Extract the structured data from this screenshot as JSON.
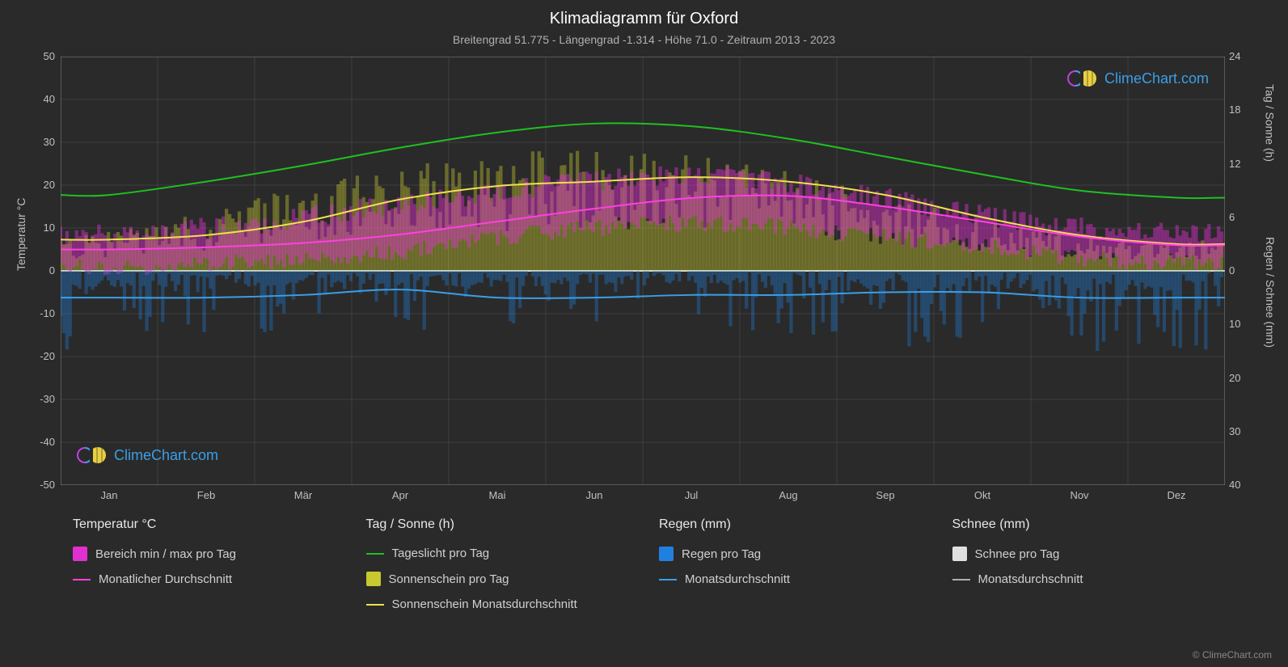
{
  "title": "Klimadiagramm für Oxford",
  "subtitle": "Breitengrad 51.775 - Längengrad -1.314 - Höhe 71.0 - Zeitraum 2013 - 2023",
  "background_color": "#2a2a2a",
  "grid_color": "#555555",
  "zero_line_color": "#e0e0e0",
  "text_color": "#e0e0e0",
  "axis_left": {
    "label": "Temperatur °C",
    "min": -50,
    "max": 50,
    "step": 10,
    "ticks": [
      50,
      40,
      30,
      20,
      10,
      0,
      -10,
      -20,
      -30,
      -40,
      -50
    ]
  },
  "axis_right_top": {
    "label": "Tag / Sonne (h)",
    "min": 0,
    "max": 24,
    "step": 6,
    "ticks": [
      24,
      18,
      12,
      6,
      0
    ]
  },
  "axis_right_bottom": {
    "label": "Regen / Schnee (mm)",
    "min": 0,
    "max": 40,
    "step": 10,
    "ticks": [
      10,
      20,
      30,
      40
    ]
  },
  "months": [
    "Jan",
    "Feb",
    "Mär",
    "Apr",
    "Mai",
    "Jun",
    "Jul",
    "Aug",
    "Sep",
    "Okt",
    "Nov",
    "Dez"
  ],
  "series": {
    "temp_range": {
      "color": "#e030d0",
      "opacity": 0.45,
      "min": [
        1,
        1,
        2,
        3,
        6,
        9,
        11,
        11,
        9,
        7,
        4,
        2
      ],
      "max": [
        8,
        9,
        11,
        14,
        17,
        20,
        22,
        22,
        19,
        15,
        11,
        9
      ]
    },
    "temp_avg": {
      "color": "#ff40e0",
      "line_width": 2,
      "values": [
        5,
        5.5,
        6.5,
        8.5,
        11.5,
        14.5,
        17,
        17.5,
        15,
        11.5,
        8,
        6
      ]
    },
    "daylight": {
      "color": "#20c020",
      "line_width": 2,
      "values_h": [
        8.5,
        10,
        11.8,
        13.8,
        15.5,
        16.5,
        16.2,
        14.8,
        12.8,
        10.8,
        9,
        8.2
      ]
    },
    "sunshine_bars": {
      "color": "#c8c830",
      "opacity": 0.4,
      "values_h": [
        2,
        3,
        4.5,
        6,
        7,
        7.5,
        7.5,
        7,
        5.5,
        4,
        2.5,
        2
      ]
    },
    "sunshine_avg": {
      "color": "#f0e050",
      "line_width": 2,
      "values_h": [
        3.5,
        4,
        5.5,
        8,
        9.5,
        10,
        10.5,
        10,
        8.5,
        6,
        4,
        3
      ]
    },
    "rain_bars": {
      "color": "#2080e0",
      "opacity": 0.35,
      "values_mm": [
        5,
        4,
        4,
        3,
        4,
        4,
        3,
        4,
        4,
        5,
        5,
        5
      ]
    },
    "rain_avg": {
      "color": "#3a9fe8",
      "line_width": 2,
      "values_mm": [
        5,
        5,
        4.5,
        3.5,
        5,
        5,
        4.5,
        4.5,
        4,
        4,
        5,
        5
      ]
    },
    "snow_bars": {
      "color": "#e0e0e0",
      "opacity": 0.3
    },
    "snow_avg": {
      "color": "#b0b0b0",
      "line_width": 2
    }
  },
  "legend": {
    "col1": {
      "header": "Temperatur °C",
      "items": [
        {
          "type": "box",
          "color": "#e030d0",
          "label": "Bereich min / max pro Tag"
        },
        {
          "type": "line",
          "color": "#ff40e0",
          "label": "Monatlicher Durchschnitt"
        }
      ]
    },
    "col2": {
      "header": "Tag / Sonne (h)",
      "items": [
        {
          "type": "line",
          "color": "#20c020",
          "label": "Tageslicht pro Tag"
        },
        {
          "type": "box",
          "color": "#c8c830",
          "label": "Sonnenschein pro Tag"
        },
        {
          "type": "line",
          "color": "#f0e050",
          "label": "Sonnenschein Monatsdurchschnitt"
        }
      ]
    },
    "col3": {
      "header": "Regen (mm)",
      "items": [
        {
          "type": "box",
          "color": "#2080e0",
          "label": "Regen pro Tag"
        },
        {
          "type": "line",
          "color": "#3a9fe8",
          "label": "Monatsdurchschnitt"
        }
      ]
    },
    "col4": {
      "header": "Schnee (mm)",
      "items": [
        {
          "type": "box",
          "color": "#e0e0e0",
          "label": "Schnee pro Tag"
        },
        {
          "type": "line",
          "color": "#b0b0b0",
          "label": "Monatsdurchschnitt"
        }
      ]
    }
  },
  "watermark_text": "ClimeChart.com",
  "watermark_color": "#3a9fe8",
  "copyright": "© ClimeChart.com"
}
